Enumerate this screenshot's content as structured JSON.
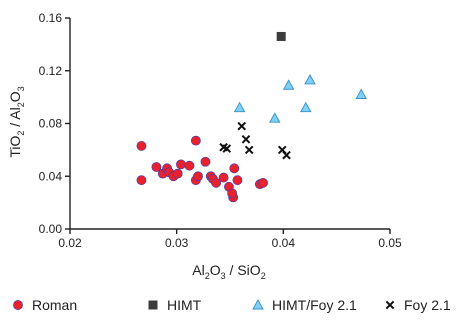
{
  "chart_data": {
    "type": "scatter",
    "xlabel": {
      "main": "Al",
      "s1": "2",
      "mid1": "O",
      "s2": "3",
      "mid2": " / SiO",
      "s3": "2"
    },
    "ylabel": {
      "main": "TiO",
      "s1": "2",
      "mid1": " / Al",
      "s2": "2",
      "mid2": "O",
      "s3": "3"
    },
    "xlim": [
      0.02,
      0.05
    ],
    "ylim": [
      0.0,
      0.16
    ],
    "xticks": [
      "0.02",
      "0.03",
      "0.04",
      "0.05"
    ],
    "yticks": [
      "0.00",
      "0.04",
      "0.08",
      "0.12",
      "0.16"
    ],
    "xtick_values": [
      0.02,
      0.03,
      0.04,
      0.05
    ],
    "ytick_values": [
      0.0,
      0.04,
      0.08,
      0.12,
      0.16
    ],
    "legend_position": "bottom",
    "series": [
      {
        "name": "Roman",
        "marker": "circle",
        "color": "#e8212e",
        "edge": "#3b3bb0",
        "points": [
          [
            0.0267,
            0.063
          ],
          [
            0.0267,
            0.037
          ],
          [
            0.0281,
            0.047
          ],
          [
            0.0287,
            0.042
          ],
          [
            0.0291,
            0.046
          ],
          [
            0.0293,
            0.043
          ],
          [
            0.0297,
            0.04
          ],
          [
            0.0301,
            0.042
          ],
          [
            0.0304,
            0.049
          ],
          [
            0.0312,
            0.048
          ],
          [
            0.0318,
            0.067
          ],
          [
            0.0318,
            0.037
          ],
          [
            0.032,
            0.04
          ],
          [
            0.0327,
            0.051
          ],
          [
            0.0332,
            0.04
          ],
          [
            0.0334,
            0.038
          ],
          [
            0.0337,
            0.035
          ],
          [
            0.0344,
            0.039
          ],
          [
            0.0349,
            0.032
          ],
          [
            0.0353,
            0.024
          ],
          [
            0.0352,
            0.027
          ],
          [
            0.0354,
            0.046
          ],
          [
            0.0357,
            0.037
          ],
          [
            0.0378,
            0.034
          ],
          [
            0.0381,
            0.035
          ]
        ]
      },
      {
        "name": "HIMT",
        "marker": "square",
        "color": "#3c3c3c",
        "points": [
          [
            0.0398,
            0.146
          ]
        ]
      },
      {
        "name": "HIMT/Foy 2.1",
        "marker": "triangle",
        "color": "#7fd0f5",
        "edge": "#3a8fc8",
        "points": [
          [
            0.0359,
            0.092
          ],
          [
            0.0392,
            0.084
          ],
          [
            0.0405,
            0.109
          ],
          [
            0.0425,
            0.113
          ],
          [
            0.0421,
            0.092
          ],
          [
            0.0473,
            0.102
          ]
        ]
      },
      {
        "name": "Foy 2.1",
        "marker": "x",
        "color": "#111111",
        "points": [
          [
            0.0344,
            0.062
          ],
          [
            0.0347,
            0.061
          ],
          [
            0.0361,
            0.078
          ],
          [
            0.0365,
            0.068
          ],
          [
            0.0368,
            0.06
          ],
          [
            0.0399,
            0.06
          ],
          [
            0.0403,
            0.056
          ]
        ]
      }
    ]
  }
}
